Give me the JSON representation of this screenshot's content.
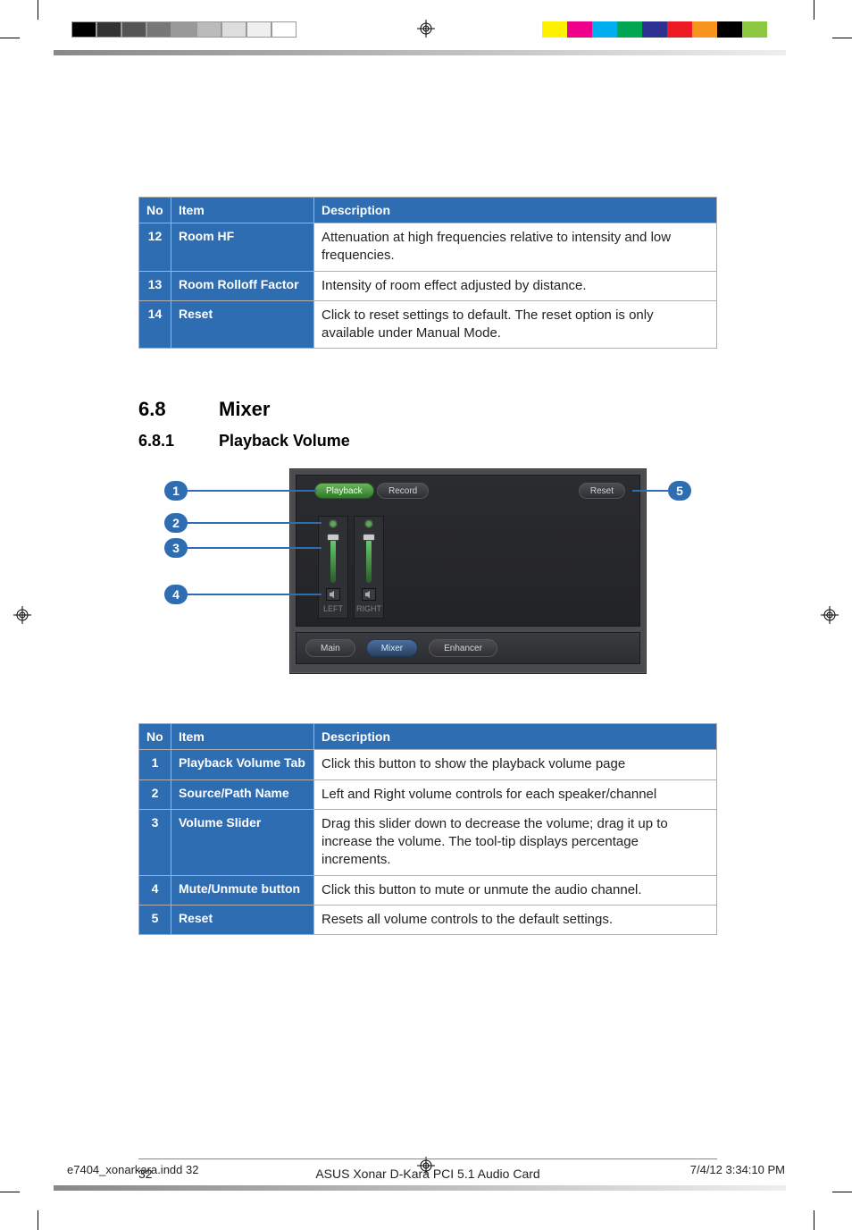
{
  "printmarks": {
    "colorbar_gray": [
      "#000000",
      "#333333",
      "#555555",
      "#777777",
      "#999999",
      "#bbbbbb",
      "#dddddd",
      "#efefef",
      "#ffffff"
    ],
    "colorbar_cmyk": [
      "#fff200",
      "#ec008c",
      "#00aeef",
      "#00a651",
      "#2e3192",
      "#ed1c24",
      "#f7941d",
      "#000000",
      "#8dc63f"
    ]
  },
  "table1": {
    "headers": {
      "no": "No",
      "item": "Item",
      "desc": "Description"
    },
    "rows": [
      {
        "no": "12",
        "item": "Room HF",
        "desc": "Attenuation at high frequencies relative to intensity and low frequencies."
      },
      {
        "no": "13",
        "item": "Room Rolloff Factor",
        "desc": "Intensity of room effect adjusted by distance."
      },
      {
        "no": "14",
        "item": "Reset",
        "desc": "Click to reset settings to default.  The reset option is only available under Manual Mode."
      }
    ]
  },
  "headings": {
    "sec_num": "6.8",
    "sec_title": "Mixer",
    "sub_num": "6.8.1",
    "sub_title": "Playback Volume"
  },
  "mixer": {
    "tabs": {
      "playback": "Playback",
      "record": "Record",
      "reset": "Reset"
    },
    "channels": [
      {
        "label": "LEFT"
      },
      {
        "label": "RIGHT"
      }
    ],
    "bottom_tabs": {
      "main": "Main",
      "mixer": "Mixer",
      "enhancer": "Enhancer"
    }
  },
  "callouts": [
    "1",
    "2",
    "3",
    "4",
    "5"
  ],
  "table2": {
    "headers": {
      "no": "No",
      "item": "Item",
      "desc": "Description"
    },
    "rows": [
      {
        "no": "1",
        "item": "Playback Volume Tab",
        "desc": "Click this button to show the playback volume page"
      },
      {
        "no": "2",
        "item": "Source/Path Name",
        "desc": "Left and Right volume controls for each speaker/channel"
      },
      {
        "no": "3",
        "item": "Volume Slider",
        "desc": "Drag this slider down to decrease the volume; drag it up to increase the volume.  The tool-tip displays percentage increments."
      },
      {
        "no": "4",
        "item": "Mute/Unmute button",
        "desc": "Click this button to mute or unmute the audio channel."
      },
      {
        "no": "5",
        "item": "Reset",
        "desc": "Resets all volume controls to the default settings."
      }
    ]
  },
  "footer": {
    "page_number": "32",
    "doc_title": "ASUS Xonar D-Kara PCI 5.1 Audio Card",
    "indd_file": "e7404_xonarkara.indd   32",
    "timestamp": "7/4/12   3:34:10 PM"
  }
}
